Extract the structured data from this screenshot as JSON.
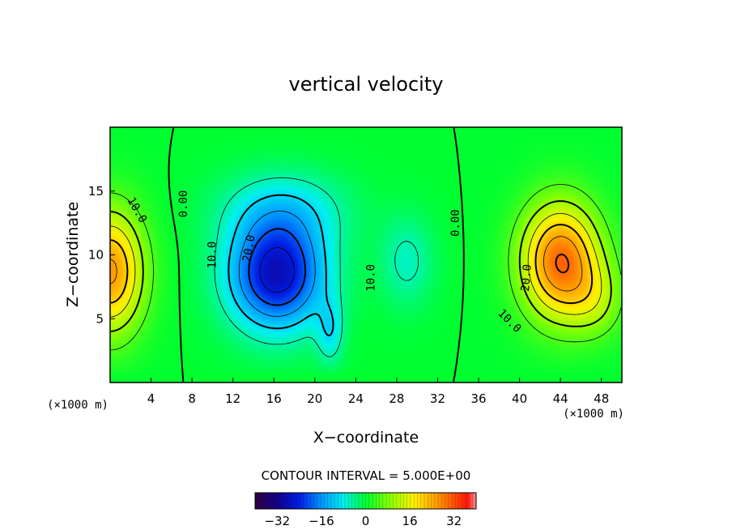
{
  "chart_data": {
    "type": "heatmap",
    "title": "vertical velocity",
    "xlabel": "X−coordinate",
    "ylabel": "Z−coordinate",
    "x_unit": "(×1000 m)",
    "z_unit": "(×1000 m)",
    "xlim": [
      0,
      50
    ],
    "ylim": [
      0,
      20
    ],
    "x_ticks": [
      4,
      8,
      12,
      16,
      20,
      24,
      28,
      32,
      36,
      40,
      44,
      48
    ],
    "y_ticks": [
      5,
      10,
      15
    ],
    "contour_interval_text": "CONTOUR INTERVAL = 5.000E+00",
    "contour_interval": 5,
    "contour_labels": [
      {
        "text": "10.0",
        "x": 2.6,
        "z": 13.5,
        "angle": 60
      },
      {
        "text": "0.00",
        "x": 7.2,
        "z": 14.0,
        "angle": -90
      },
      {
        "text": "10.0",
        "x": 10.0,
        "z": 10.0,
        "angle": -90
      },
      {
        "text": "20.0",
        "x": 13.6,
        "z": 10.5,
        "angle": -80
      },
      {
        "text": "10.0",
        "x": 25.5,
        "z": 8.2,
        "angle": -90
      },
      {
        "text": "0.00",
        "x": 33.8,
        "z": 12.5,
        "angle": -90
      },
      {
        "text": "20.0",
        "x": 40.7,
        "z": 8.2,
        "angle": -85
      },
      {
        "text": "10.0",
        "x": 39.0,
        "z": 4.8,
        "angle": 45
      }
    ],
    "fields": [
      {
        "name": "left updraft",
        "x": 0.0,
        "z": 8.7,
        "sx": 3.3,
        "sz": 4.8,
        "w": 26
      },
      {
        "name": "left downdraft core",
        "x": 16.3,
        "z": 8.5,
        "sx": 4.6,
        "sz": 4.2,
        "w": -28
      },
      {
        "name": "downdraft tail",
        "x": 21.5,
        "z": 4.0,
        "sx": 1.3,
        "sz": 2.5,
        "w": -8
      },
      {
        "name": "downdraft upper",
        "x": 17.0,
        "z": 13.5,
        "sx": 6.0,
        "sz": 3.0,
        "w": -8
      },
      {
        "name": "weak downdraft",
        "x": 29.0,
        "z": 9.5,
        "sx": 2.6,
        "sz": 3.5,
        "w": -6
      },
      {
        "name": "right updraft",
        "x": 44.0,
        "z": 9.5,
        "sx": 3.8,
        "sz": 4.5,
        "w": 30
      },
      {
        "name": "right updraft shoulder",
        "x": 47.5,
        "z": 6.5,
        "sx": 2.8,
        "sz": 3.0,
        "w": 8
      }
    ],
    "colorbar": {
      "min": -40,
      "max": 40,
      "tick_values": [
        -32,
        -16,
        0,
        16,
        32
      ],
      "tick_labels": [
        "−32",
        "−16",
        "0",
        "16",
        "32"
      ]
    },
    "colors": {
      "deep_negative": "#300040",
      "zero": "#00ff30",
      "deep_positive": "#ff1010"
    },
    "grid": false,
    "legend": "none"
  }
}
